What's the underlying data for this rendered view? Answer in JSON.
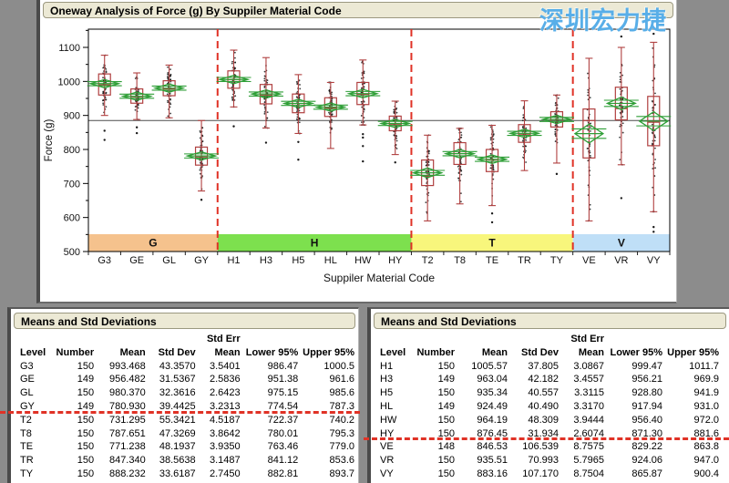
{
  "watermark": {
    "text": "深圳宏力捷"
  },
  "chart_panel": {
    "title": "Oneway Analysis of Force (g) By Suppiler Material Code"
  },
  "chart_data": {
    "type": "box",
    "title": "Oneway Analysis of Force (g) By Suppiler Material Code",
    "xlabel": "Suppiler Material Code",
    "ylabel": "Force (g)",
    "ylim": [
      500,
      1150
    ],
    "yticks": [
      500,
      600,
      700,
      800,
      900,
      1000,
      1100
    ],
    "grid": false,
    "legend_position": "none",
    "grand_mean_line": 885,
    "groups": [
      {
        "name": "G",
        "color": "#F5C28D",
        "categories": 4
      },
      {
        "name": "H",
        "color": "#7DE04E",
        "categories": 6
      },
      {
        "name": "T",
        "color": "#F8F67C",
        "categories": 5
      },
      {
        "name": "V",
        "color": "#BFDFF7",
        "categories": 3
      }
    ],
    "series": [
      {
        "code": "G3",
        "group": "G",
        "n": 150,
        "mean": 993.468,
        "std_dev": 43.357,
        "std_err": 3.5401,
        "lower95": 986.47,
        "upper95": 1000.5,
        "median": 990,
        "q1": 960,
        "q3": 1022,
        "whisker_low": 900,
        "whisker_high": 1077,
        "outliers": [
          855,
          828
        ]
      },
      {
        "code": "GE",
        "group": "G",
        "n": 149,
        "mean": 956.482,
        "std_dev": 31.5367,
        "std_err": 2.5836,
        "lower95": 951.38,
        "upper95": 961.6,
        "median": 955,
        "q1": 936,
        "q3": 978,
        "whisker_low": 888,
        "whisker_high": 1025,
        "outliers": [
          865,
          848
        ]
      },
      {
        "code": "GL",
        "group": "G",
        "n": 150,
        "mean": 980.37,
        "std_dev": 32.3616,
        "std_err": 2.6423,
        "lower95": 975.15,
        "upper95": 985.6,
        "median": 978,
        "q1": 958,
        "q3": 1002,
        "whisker_low": 893,
        "whisker_high": 1048,
        "outliers": []
      },
      {
        "code": "GY",
        "group": "G",
        "n": 149,
        "mean": 780.93,
        "std_dev": 39.4425,
        "std_err": 3.2313,
        "lower95": 774.54,
        "upper95": 787.3,
        "median": 778,
        "q1": 754,
        "q3": 807,
        "whisker_low": 678,
        "whisker_high": 885,
        "outliers": [
          652
        ]
      },
      {
        "code": "H1",
        "group": "H",
        "n": 150,
        "mean": 1005.57,
        "std_dev": 37.805,
        "std_err": 3.0867,
        "lower95": 999.47,
        "upper95": 1011.7,
        "median": 1005,
        "q1": 980,
        "q3": 1031,
        "whisker_low": 925,
        "whisker_high": 1092,
        "outliers": [
          868
        ]
      },
      {
        "code": "H3",
        "group": "H",
        "n": 149,
        "mean": 963.04,
        "std_dev": 42.182,
        "std_err": 3.4557,
        "lower95": 956.21,
        "upper95": 969.9,
        "median": 960,
        "q1": 934,
        "q3": 991,
        "whisker_low": 863,
        "whisker_high": 1070,
        "outliers": [
          820
        ]
      },
      {
        "code": "H5",
        "group": "H",
        "n": 150,
        "mean": 935.34,
        "std_dev": 40.557,
        "std_err": 3.3115,
        "lower95": 928.8,
        "upper95": 941.9,
        "median": 935,
        "q1": 908,
        "q3": 963,
        "whisker_low": 847,
        "whisker_high": 1020,
        "outliers": [
          822,
          770
        ]
      },
      {
        "code": "HL",
        "group": "H",
        "n": 149,
        "mean": 924.49,
        "std_dev": 40.49,
        "std_err": 3.317,
        "lower95": 917.94,
        "upper95": 931.0,
        "median": 922,
        "q1": 897,
        "q3": 952,
        "whisker_low": 803,
        "whisker_high": 997,
        "outliers": []
      },
      {
        "code": "HW",
        "group": "H",
        "n": 150,
        "mean": 964.19,
        "std_dev": 48.309,
        "std_err": 3.9444,
        "lower95": 956.4,
        "upper95": 972.0,
        "median": 962,
        "q1": 932,
        "q3": 997,
        "whisker_low": 872,
        "whisker_high": 1063,
        "outliers": [
          845,
          835,
          810,
          765
        ]
      },
      {
        "code": "HY",
        "group": "H",
        "n": 150,
        "mean": 876.45,
        "std_dev": 31.934,
        "std_err": 2.6074,
        "lower95": 871.3,
        "upper95": 881.6,
        "median": 873,
        "q1": 855,
        "q3": 898,
        "whisker_low": 785,
        "whisker_high": 942,
        "outliers": [
          762
        ]
      },
      {
        "code": "T2",
        "group": "T",
        "n": 150,
        "mean": 731.295,
        "std_dev": 55.3421,
        "std_err": 4.5187,
        "lower95": 722.37,
        "upper95": 740.2,
        "median": 722,
        "q1": 694,
        "q3": 769,
        "whisker_low": 590,
        "whisker_high": 842,
        "outliers": []
      },
      {
        "code": "T8",
        "group": "T",
        "n": 150,
        "mean": 787.651,
        "std_dev": 47.3269,
        "std_err": 3.8642,
        "lower95": 780.01,
        "upper95": 795.3,
        "median": 788,
        "q1": 756,
        "q3": 820,
        "whisker_low": 640,
        "whisker_high": 862,
        "outliers": []
      },
      {
        "code": "TE",
        "group": "T",
        "n": 150,
        "mean": 771.238,
        "std_dev": 48.1937,
        "std_err": 3.935,
        "lower95": 763.46,
        "upper95": 779.0,
        "median": 770,
        "q1": 735,
        "q3": 800,
        "whisker_low": 635,
        "whisker_high": 871,
        "outliers": [
          612,
          586
        ]
      },
      {
        "code": "TR",
        "group": "T",
        "n": 150,
        "mean": 847.34,
        "std_dev": 38.5638,
        "std_err": 3.1487,
        "lower95": 841.12,
        "upper95": 853.6,
        "median": 845,
        "q1": 821,
        "q3": 873,
        "whisker_low": 738,
        "whisker_high": 943,
        "outliers": []
      },
      {
        "code": "TY",
        "group": "T",
        "n": 150,
        "mean": 888.232,
        "std_dev": 33.6187,
        "std_err": 2.745,
        "lower95": 882.81,
        "upper95": 893.7,
        "median": 888,
        "q1": 866,
        "q3": 911,
        "whisker_low": 760,
        "whisker_high": 960,
        "outliers": [
          728
        ]
      },
      {
        "code": "VE",
        "group": "V",
        "n": 148,
        "mean": 846.53,
        "std_dev": 106.539,
        "std_err": 8.7575,
        "lower95": 829.22,
        "upper95": 863.8,
        "median": 885,
        "q1": 775,
        "q3": 919,
        "whisker_low": 590,
        "whisker_high": 1068,
        "outliers": []
      },
      {
        "code": "VR",
        "group": "V",
        "n": 150,
        "mean": 935.51,
        "std_dev": 70.993,
        "std_err": 5.7965,
        "lower95": 924.06,
        "upper95": 947.0,
        "median": 920,
        "q1": 887,
        "q3": 983,
        "whisker_low": 755,
        "whisker_high": 1100,
        "outliers": [
          1132,
          657
        ]
      },
      {
        "code": "VY",
        "group": "V",
        "n": 150,
        "mean": 883.16,
        "std_dev": 107.17,
        "std_err": 8.7504,
        "lower95": 865.87,
        "upper95": 900.4,
        "median": 880,
        "q1": 811,
        "q3": 956,
        "whisker_low": 617,
        "whisker_high": 1115,
        "outliers": [
          1140,
          572,
          558
        ]
      }
    ]
  },
  "tables": [
    {
      "title": "Means and Std Deviations",
      "super_header": {
        "label": "Std Err",
        "column": 4
      },
      "columns": [
        "Level",
        "Number",
        "Mean",
        "Std Dev",
        "Mean",
        "Lower 95%",
        "Upper 95%"
      ],
      "rows": [
        [
          "G3",
          "150",
          "993.468",
          "43.3570",
          "3.5401",
          "986.47",
          "1000.5"
        ],
        [
          "GE",
          "149",
          "956.482",
          "31.5367",
          "2.5836",
          "951.38",
          "961.6"
        ],
        [
          "GL",
          "150",
          "980.370",
          "32.3616",
          "2.6423",
          "975.15",
          "985.6"
        ],
        [
          "GY",
          "149",
          "780.930",
          "39.4425",
          "3.2313",
          "774.54",
          "787.3"
        ],
        [
          "T2",
          "150",
          "731.295",
          "55.3421",
          "4.5187",
          "722.37",
          "740.2"
        ],
        [
          "T8",
          "150",
          "787.651",
          "47.3269",
          "3.8642",
          "780.01",
          "795.3"
        ],
        [
          "TE",
          "150",
          "771.238",
          "48.1937",
          "3.9350",
          "763.46",
          "779.0"
        ],
        [
          "TR",
          "150",
          "847.340",
          "38.5638",
          "3.1487",
          "841.12",
          "853.6"
        ],
        [
          "TY",
          "150",
          "888.232",
          "33.6187",
          "2.7450",
          "882.81",
          "893.7"
        ]
      ],
      "divider_after_row": 3
    },
    {
      "title": "Means and Std Deviations",
      "super_header": {
        "label": "Std Err",
        "column": 4
      },
      "columns": [
        "Level",
        "Number",
        "Mean",
        "Std Dev",
        "Mean",
        "Lower 95%",
        "Upper 95%"
      ],
      "rows": [
        [
          "H1",
          "150",
          "1005.57",
          "37.805",
          "3.0867",
          "999.47",
          "1011.7"
        ],
        [
          "H3",
          "149",
          "963.04",
          "42.182",
          "3.4557",
          "956.21",
          "969.9"
        ],
        [
          "H5",
          "150",
          "935.34",
          "40.557",
          "3.3115",
          "928.80",
          "941.9"
        ],
        [
          "HL",
          "149",
          "924.49",
          "40.490",
          "3.3170",
          "917.94",
          "931.0"
        ],
        [
          "HW",
          "150",
          "964.19",
          "48.309",
          "3.9444",
          "956.40",
          "972.0"
        ],
        [
          "HY",
          "150",
          "876.45",
          "31.934",
          "2.6074",
          "871.30",
          "881.6"
        ],
        [
          "VE",
          "148",
          "846.53",
          "106.539",
          "8.7575",
          "829.22",
          "863.8"
        ],
        [
          "VR",
          "150",
          "935.51",
          "70.993",
          "5.7965",
          "924.06",
          "947.0"
        ],
        [
          "VY",
          "150",
          "883.16",
          "107.170",
          "8.7504",
          "865.87",
          "900.4"
        ]
      ],
      "divider_after_row": 5
    }
  ],
  "colors": {
    "background": "#8C8C8C",
    "panel": "#FFFFFF",
    "titlebar_bg": "#ECE9D5",
    "titlebar_border": "#9B9880",
    "box_red": "#B04040",
    "dash_red": "#E03226",
    "diamond_green": "#2E9E36",
    "grand_mean": "#4D4D4D",
    "point": "#1A1A1A",
    "watermark_blue": "#58AEE8"
  }
}
